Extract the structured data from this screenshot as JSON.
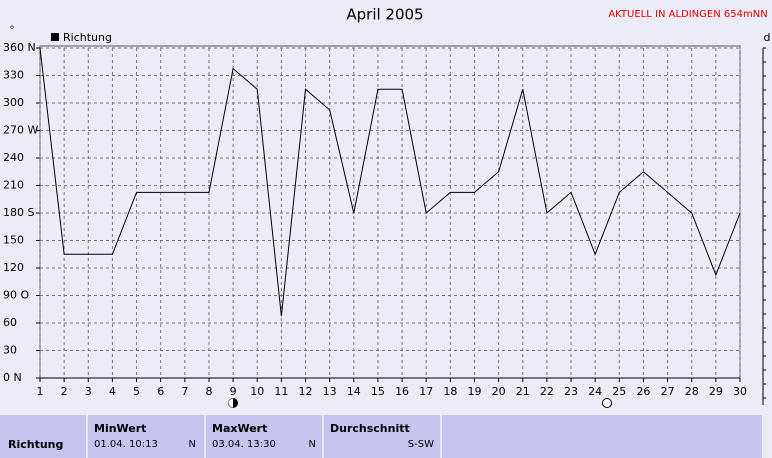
{
  "chart_data": {
    "type": "line",
    "title": "April 2005",
    "annotation": "AKTUELL IN ALDINGEN 654mNN",
    "y_unit_label": "°",
    "right_label": "d",
    "x": [
      1,
      2,
      3,
      4,
      5,
      6,
      7,
      8,
      9,
      10,
      11,
      12,
      13,
      14,
      15,
      16,
      17,
      18,
      19,
      20,
      21,
      22,
      23,
      24,
      25,
      26,
      27,
      28,
      29,
      30
    ],
    "series": [
      {
        "name": "Richtung",
        "color": "#000000",
        "values": [
          360,
          135,
          135,
          135,
          202.5,
          202.5,
          202.5,
          202.5,
          337.5,
          315,
          67.5,
          315,
          292.5,
          180,
          315,
          315,
          180,
          202.5,
          202.5,
          225,
          315,
          180,
          202.5,
          135,
          202.5,
          225,
          202.5,
          180,
          112.5,
          180
        ]
      }
    ],
    "xlim": [
      1,
      30
    ],
    "xticks": [
      1,
      2,
      3,
      4,
      5,
      6,
      7,
      8,
      9,
      10,
      11,
      12,
      13,
      14,
      15,
      16,
      17,
      18,
      19,
      20,
      21,
      22,
      23,
      24,
      25,
      26,
      27,
      28,
      29,
      30
    ],
    "ylim": [
      0,
      360
    ],
    "yticks": [
      {
        "value": 0,
        "label": "0  N"
      },
      30,
      60,
      {
        "value": 90,
        "label": "90  O"
      },
      120,
      150,
      {
        "value": 180,
        "label": "180 S"
      },
      210,
      240,
      {
        "value": 270,
        "label": "270 W"
      },
      300,
      330,
      {
        "value": 360,
        "label": "360 N"
      }
    ],
    "grid": true
  },
  "summary_table": {
    "row_label": "Richtung",
    "columns": [
      {
        "header": "MinWert",
        "time": "01.04.  10:13",
        "dir": "N"
      },
      {
        "header": "MaxWert",
        "time": "03.04.  13:30",
        "dir": "N"
      },
      {
        "header": "Durchschnitt",
        "dir": "S-SW"
      }
    ]
  }
}
